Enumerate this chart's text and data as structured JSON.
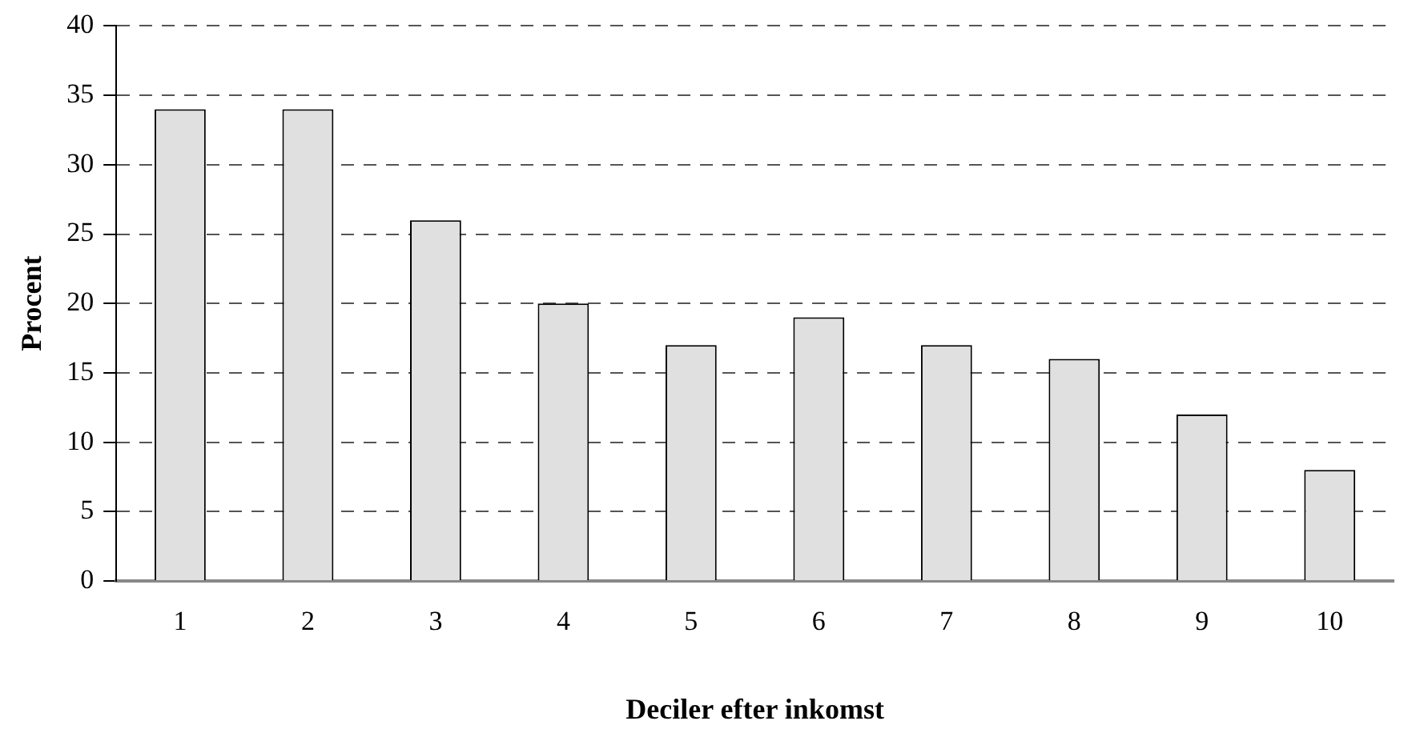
{
  "chart_data": {
    "type": "bar",
    "xlabel": "Deciler efter inkomst",
    "ylabel": "Procent",
    "categories": [
      "1",
      "2",
      "3",
      "4",
      "5",
      "6",
      "7",
      "8",
      "9",
      "10"
    ],
    "values": [
      34,
      34,
      26,
      20,
      17,
      19,
      17,
      16,
      12,
      8
    ],
    "color": "#e0e0e0",
    "ylim": [
      0,
      40
    ],
    "yticks": [
      0,
      5,
      10,
      15,
      20,
      25,
      30,
      35,
      40
    ],
    "grid": "y",
    "legend": false
  }
}
